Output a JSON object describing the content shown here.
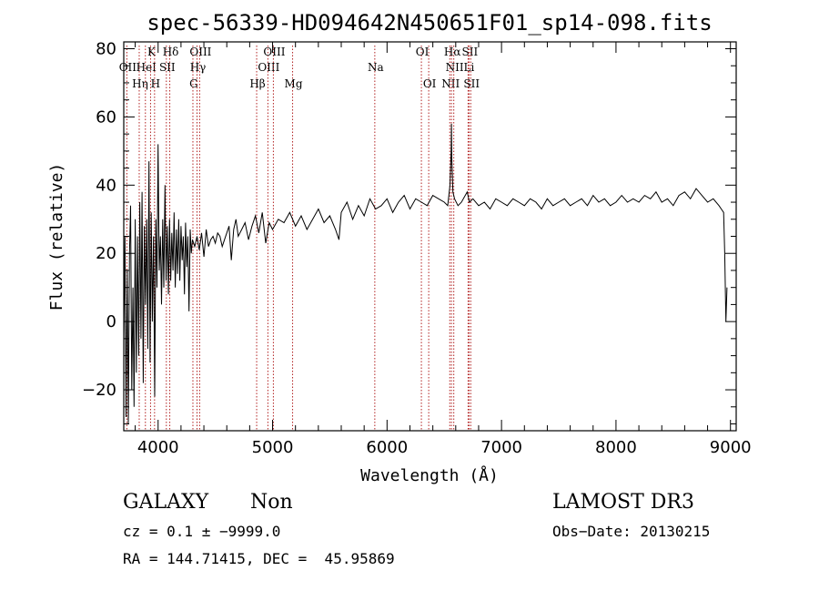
{
  "chart_data": {
    "type": "line",
    "title": "spec-56339-HD094642N450651F01_sp14-098.fits",
    "xlabel": "Wavelength (Å)",
    "ylabel": "Flux (relative)",
    "xlim": [
      3700,
      9050
    ],
    "ylim": [
      -32,
      82
    ],
    "x_ticks": [
      {
        "value": 4000,
        "label": "4000"
      },
      {
        "value": 5000,
        "label": "5000"
      },
      {
        "value": 6000,
        "label": "6000"
      },
      {
        "value": 7000,
        "label": "7000"
      },
      {
        "value": 8000,
        "label": "8000"
      },
      {
        "value": 9000,
        "label": "9000"
      }
    ],
    "y_ticks": [
      {
        "value": -20,
        "label": "−20"
      },
      {
        "value": 0,
        "label": "0"
      },
      {
        "value": 20,
        "label": "20"
      },
      {
        "value": 40,
        "label": "40"
      },
      {
        "value": 60,
        "label": "60"
      },
      {
        "value": 80,
        "label": "80"
      }
    ],
    "spectral_lines": [
      {
        "wavelength": 3727,
        "label": "OII",
        "row": 2
      },
      {
        "wavelength": 3835,
        "label": "Hη",
        "row": 3
      },
      {
        "wavelength": 3889,
        "label": "HeI",
        "row": 2
      },
      {
        "wavelength": 3934,
        "label": "K",
        "row": 1
      },
      {
        "wavelength": 3969,
        "label": "H",
        "row": 3
      },
      {
        "wavelength": 4102,
        "label": "Hδ",
        "row": 1
      },
      {
        "wavelength": 4072,
        "label": "SII",
        "row": 2
      },
      {
        "wavelength": 4304,
        "label": "G",
        "row": 3
      },
      {
        "wavelength": 4340,
        "label": "Hγ",
        "row": 2
      },
      {
        "wavelength": 4363,
        "label": "OIII",
        "row": 1
      },
      {
        "wavelength": 4861,
        "label": "Hβ",
        "row": 3
      },
      {
        "wavelength": 4959,
        "label": "OIII",
        "row": 2
      },
      {
        "wavelength": 5007,
        "label": "OIII",
        "row": 1
      },
      {
        "wavelength": 5175,
        "label": "Mg",
        "row": 3
      },
      {
        "wavelength": 5893,
        "label": "Na",
        "row": 2
      },
      {
        "wavelength": 6300,
        "label": "OI",
        "row": 1
      },
      {
        "wavelength": 6364,
        "label": "OI",
        "row": 3
      },
      {
        "wavelength": 6548,
        "label": "NII",
        "row": 3
      },
      {
        "wavelength": 6563,
        "label": "Hα",
        "row": 1
      },
      {
        "wavelength": 6583,
        "label": "NII",
        "row": 2
      },
      {
        "wavelength": 6708,
        "label": "Li",
        "row": 2
      },
      {
        "wavelength": 6716,
        "label": "SII",
        "row": 1
      },
      {
        "wavelength": 6731,
        "label": "SII",
        "row": 3
      }
    ],
    "series": [
      {
        "name": "flux",
        "x": [
          3700,
          3710,
          3720,
          3730,
          3740,
          3750,
          3760,
          3770,
          3780,
          3790,
          3800,
          3810,
          3820,
          3830,
          3840,
          3850,
          3860,
          3870,
          3880,
          3890,
          3900,
          3910,
          3920,
          3930,
          3940,
          3950,
          3960,
          3970,
          3980,
          3990,
          4000,
          4010,
          4020,
          4030,
          4040,
          4050,
          4060,
          4070,
          4080,
          4090,
          4100,
          4110,
          4120,
          4130,
          4140,
          4150,
          4160,
          4170,
          4180,
          4190,
          4200,
          4210,
          4220,
          4230,
          4240,
          4250,
          4260,
          4270,
          4280,
          4290,
          4300,
          4320,
          4340,
          4360,
          4380,
          4400,
          4420,
          4440,
          4460,
          4480,
          4500,
          4520,
          4540,
          4560,
          4580,
          4600,
          4620,
          4640,
          4660,
          4680,
          4700,
          4730,
          4760,
          4790,
          4820,
          4850,
          4880,
          4910,
          4940,
          4970,
          5000,
          5050,
          5100,
          5150,
          5200,
          5250,
          5300,
          5350,
          5400,
          5450,
          5500,
          5550,
          5580,
          5600,
          5650,
          5700,
          5750,
          5800,
          5850,
          5900,
          5950,
          6000,
          6050,
          6100,
          6150,
          6200,
          6250,
          6300,
          6350,
          6400,
          6450,
          6500,
          6530,
          6550,
          6560,
          6563,
          6566,
          6575,
          6590,
          6620,
          6650,
          6700,
          6720,
          6750,
          6800,
          6850,
          6900,
          6950,
          7000,
          7050,
          7100,
          7150,
          7200,
          7250,
          7300,
          7350,
          7400,
          7450,
          7500,
          7550,
          7600,
          7650,
          7700,
          7750,
          7800,
          7850,
          7900,
          7950,
          8000,
          8050,
          8100,
          8150,
          8200,
          8250,
          8300,
          8350,
          8400,
          8450,
          8500,
          8550,
          8600,
          8650,
          8700,
          8750,
          8800,
          8850,
          8900,
          8920,
          8940,
          8950,
          8960,
          8970
        ],
        "y": [
          -5,
          25,
          -28,
          15,
          -30,
          20,
          34,
          -20,
          10,
          -25,
          30,
          -15,
          25,
          -10,
          35,
          -5,
          38,
          -18,
          28,
          5,
          30,
          -8,
          47,
          -12,
          32,
          0,
          25,
          -22,
          30,
          10,
          52,
          15,
          25,
          5,
          30,
          10,
          40,
          12,
          28,
          8,
          30,
          12,
          26,
          15,
          32,
          10,
          27,
          14,
          30,
          12,
          28,
          18,
          25,
          8,
          29,
          16,
          25,
          3,
          27,
          20,
          24,
          22,
          25,
          21,
          26,
          19,
          27,
          22,
          24,
          25,
          23,
          26,
          25,
          22,
          24,
          26,
          28,
          18,
          27,
          30,
          25,
          27,
          29,
          24,
          28,
          31,
          26,
          32,
          23,
          29,
          27,
          30,
          29,
          32,
          28,
          31,
          27,
          30,
          33,
          29,
          31,
          27,
          24,
          32,
          35,
          30,
          34,
          31,
          36,
          33,
          34,
          36,
          32,
          35,
          37,
          33,
          36,
          35,
          34,
          37,
          36,
          35,
          34,
          40,
          50,
          58,
          48,
          38,
          36,
          34,
          35,
          38,
          35,
          36,
          34,
          35,
          33,
          36,
          35,
          34,
          36,
          35,
          34,
          36,
          35,
          33,
          36,
          34,
          35,
          36,
          34,
          35,
          36,
          34,
          37,
          35,
          36,
          34,
          35,
          37,
          35,
          36,
          35,
          37,
          36,
          38,
          35,
          36,
          34,
          37,
          38,
          36,
          39,
          37,
          35,
          36,
          34,
          33,
          32,
          20,
          0,
          10
        ]
      }
    ]
  },
  "info": {
    "class_label": "GALAXY",
    "subclass_label": "Non",
    "survey_label": "LAMOST DR3",
    "cz_text": "cz = 0.1 ± −9999.0",
    "obs_date_text": "Obs−Date: 20130215",
    "coords_text": "RA = 144.71415, DEC =  45.95869"
  }
}
